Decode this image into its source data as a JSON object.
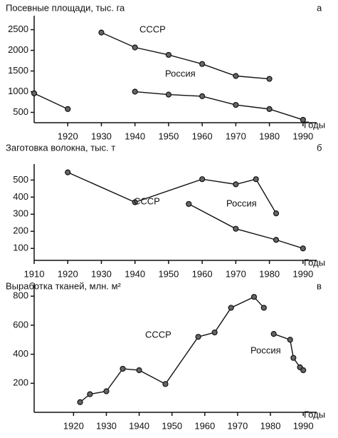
{
  "chart_data": [
    {
      "type": "line",
      "title": "Посевные площади, тыс. га",
      "panel_label": "а",
      "x_label": "Годы",
      "xlim": [
        1910,
        1993
      ],
      "xticks": [
        1920,
        1930,
        1940,
        1950,
        1960,
        1970,
        1980,
        1990
      ],
      "ylim": [
        250,
        2700
      ],
      "yticks": [
        500,
        1000,
        1500,
        2000,
        2500
      ],
      "series": [
        {
          "color": "#111111",
          "x": [
            1910,
            1920
          ],
          "values": [
            960,
            580
          ]
        },
        {
          "name": "СССР",
          "color": "#111111",
          "x": [
            1930,
            1940,
            1950,
            1960,
            1970,
            1980
          ],
          "values": [
            2430,
            2070,
            1890,
            1670,
            1380,
            1310
          ]
        },
        {
          "name": "Россия",
          "color": "#111111",
          "x": [
            1940,
            1950,
            1960,
            1970,
            1980,
            1990
          ],
          "values": [
            1000,
            930,
            890,
            680,
            580,
            320
          ]
        }
      ]
    },
    {
      "type": "line",
      "title": "Заготовка волокна, тыс. т",
      "panel_label": "б",
      "x_label": "Годы",
      "xlim": [
        1910,
        1993
      ],
      "xticks": [
        1910,
        1920,
        1930,
        1940,
        1950,
        1960,
        1970,
        1980,
        1990
      ],
      "ylim": [
        30,
        560
      ],
      "yticks": [
        100,
        200,
        300,
        400,
        500
      ],
      "series": [
        {
          "name": "СССР",
          "color": "#111111",
          "x": [
            1920,
            1940,
            1960,
            1970,
            1976,
            1982
          ],
          "values": [
            545,
            370,
            505,
            475,
            505,
            305
          ]
        },
        {
          "name": "Россия",
          "color": "#111111",
          "x": [
            1956,
            1970,
            1982,
            1990
          ],
          "values": [
            360,
            215,
            150,
            100
          ]
        }
      ]
    },
    {
      "type": "line",
      "title": "Выработка тканей, млн. м²",
      "panel_label": "в",
      "x_label": "Годы",
      "xlim": [
        1908,
        1993
      ],
      "xticks": [
        1920,
        1930,
        1940,
        1950,
        1960,
        1970,
        1980,
        1990
      ],
      "ylim": [
        0,
        850
      ],
      "yticks": [
        200,
        400,
        600,
        800
      ],
      "series": [
        {
          "name": "СССР",
          "color": "#111111",
          "x": [
            1922,
            1925,
            1930,
            1935,
            1940,
            1948,
            1958,
            1963,
            1968,
            1975,
            1978
          ],
          "values": [
            70,
            125,
            145,
            300,
            290,
            195,
            520,
            550,
            720,
            795,
            720
          ]
        },
        {
          "name": "Россия",
          "color": "#111111",
          "x": [
            1981,
            1986,
            1987,
            1989,
            1990
          ],
          "values": [
            540,
            500,
            375,
            310,
            290
          ]
        }
      ]
    }
  ]
}
